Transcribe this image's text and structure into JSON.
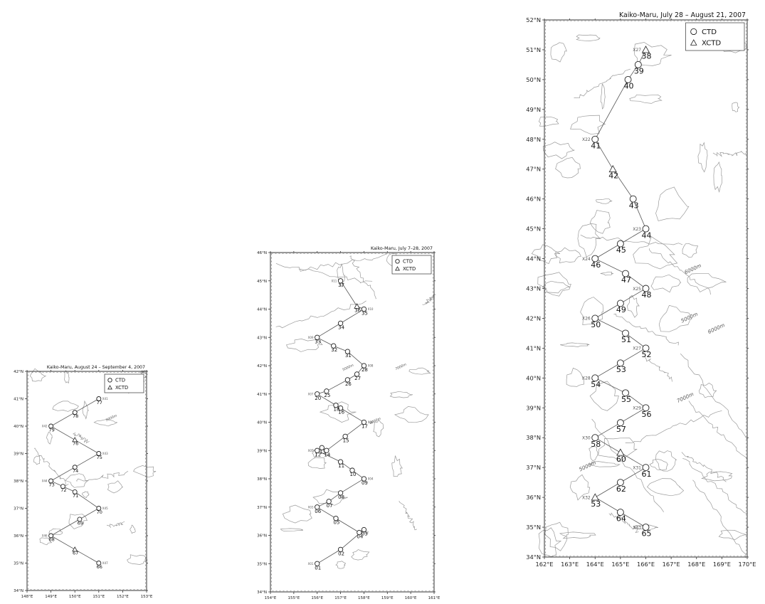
{
  "maps": [
    {
      "title": "Kaiko-Maru, August 24 – September 4, 2007",
      "lon_range": [
        148,
        153
      ],
      "lat_range": [
        34,
        42
      ],
      "lon_ticks": [
        "148°E",
        "149°E",
        "150°E",
        "151°E",
        "152°E",
        "153°E"
      ],
      "lat_ticks": [
        "34°N",
        "35°N",
        "36°N",
        "37°N",
        "38°N",
        "39°N",
        "40°N",
        "41°N",
        "42°N"
      ],
      "legend": {
        "ctd": "CTD",
        "xctd": "XCTD"
      },
      "stations": [
        {
          "label": "66",
          "lon": 151.0,
          "lat": 35.0,
          "type": "ctd",
          "code": "X47"
        },
        {
          "label": "67",
          "lon": 150.0,
          "lat": 35.5,
          "type": "xctd"
        },
        {
          "label": "68",
          "lon": 149.0,
          "lat": 36.0,
          "type": "ctd",
          "code": "X46"
        },
        {
          "label": "69",
          "lon": 150.2,
          "lat": 36.6,
          "type": "ctd"
        },
        {
          "label": "70",
          "lon": 151.0,
          "lat": 37.0,
          "type": "ctd",
          "code": "X45"
        },
        {
          "label": "71",
          "lon": 150.0,
          "lat": 37.6,
          "type": "ctd"
        },
        {
          "label": "72",
          "lon": 149.5,
          "lat": 37.8,
          "type": "ctd"
        },
        {
          "label": "73",
          "lon": 149.0,
          "lat": 38.0,
          "type": "ctd",
          "code": "X44"
        },
        {
          "label": "74",
          "lon": 150.0,
          "lat": 38.5,
          "type": "ctd"
        },
        {
          "label": "75",
          "lon": 151.0,
          "lat": 39.0,
          "type": "ctd",
          "code": "X43"
        },
        {
          "label": "76",
          "lon": 150.0,
          "lat": 39.5,
          "type": "xctd"
        },
        {
          "label": "79",
          "lon": 149.0,
          "lat": 40.0,
          "type": "ctd",
          "code": "X42"
        },
        {
          "label": "78",
          "lon": 150.0,
          "lat": 40.5,
          "type": "ctd"
        },
        {
          "label": "77",
          "lon": 151.0,
          "lat": 41.0,
          "type": "ctd",
          "code": "X41"
        }
      ],
      "depth_labels": [
        "5000m"
      ]
    },
    {
      "title": "Kaiko-Maru, July 7–28, 2007",
      "lon_range": [
        154,
        161
      ],
      "lat_range": [
        34,
        46
      ],
      "lon_ticks": [
        "154°E",
        "155°E",
        "156°E",
        "157°E",
        "158°E",
        "159°E",
        "160°E",
        "161°E"
      ],
      "lat_ticks": [
        "34°N",
        "35°N",
        "36°N",
        "37°N",
        "38°N",
        "39°N",
        "40°N",
        "41°N",
        "42°N",
        "43°N",
        "44°N",
        "45°N",
        "46°N"
      ],
      "legend": {
        "ctd": "CTD",
        "xctd": "XCTD"
      },
      "stations": [
        {
          "label": "01",
          "lon": 156.0,
          "lat": 35.0,
          "type": "ctd",
          "code": "X01"
        },
        {
          "label": "02",
          "lon": 157.0,
          "lat": 35.5,
          "type": "ctd"
        },
        {
          "label": "03",
          "lon": 158.0,
          "lat": 36.2,
          "type": "ctd"
        },
        {
          "label": "04",
          "lon": 157.8,
          "lat": 36.1,
          "type": "ctd",
          "code": "X02"
        },
        {
          "label": "05",
          "lon": 156.8,
          "lat": 36.6,
          "type": "ctd"
        },
        {
          "label": "06",
          "lon": 156.0,
          "lat": 37.0,
          "type": "ctd",
          "code": "X03"
        },
        {
          "label": "07",
          "lon": 156.5,
          "lat": 37.2,
          "type": "ctd"
        },
        {
          "label": "08",
          "lon": 157.0,
          "lat": 37.5,
          "type": "ctd"
        },
        {
          "label": "09",
          "lon": 158.0,
          "lat": 38.0,
          "type": "ctd",
          "code": "X04"
        },
        {
          "label": "10",
          "lon": 157.5,
          "lat": 38.3,
          "type": "ctd"
        },
        {
          "label": "11",
          "lon": 157.0,
          "lat": 38.6,
          "type": "ctd"
        },
        {
          "label": "12",
          "lon": 156.0,
          "lat": 39.0,
          "type": "ctd",
          "code": "X05"
        },
        {
          "label": "13",
          "lon": 156.2,
          "lat": 39.1,
          "type": "ctd"
        },
        {
          "label": "14",
          "lon": 156.4,
          "lat": 39.0,
          "type": "ctd"
        },
        {
          "label": "15",
          "lon": 157.2,
          "lat": 39.5,
          "type": "ctd"
        },
        {
          "label": "17",
          "lon": 158.0,
          "lat": 40.0,
          "type": "ctd",
          "code": "X06"
        },
        {
          "label": "16",
          "lon": 157.0,
          "lat": 40.5,
          "type": "ctd"
        },
        {
          "label": "18",
          "lon": 156.8,
          "lat": 40.6,
          "type": "ctd"
        },
        {
          "label": "20",
          "lon": 156.0,
          "lat": 41.0,
          "type": "ctd",
          "code": "X07"
        },
        {
          "label": "25",
          "lon": 156.4,
          "lat": 41.1,
          "type": "ctd"
        },
        {
          "label": "26",
          "lon": 157.3,
          "lat": 41.5,
          "type": "ctd"
        },
        {
          "label": "27",
          "lon": 157.7,
          "lat": 41.7,
          "type": "ctd"
        },
        {
          "label": "28",
          "lon": 158.0,
          "lat": 42.0,
          "type": "ctd",
          "code": "X08"
        },
        {
          "label": "31",
          "lon": 157.3,
          "lat": 42.5,
          "type": "ctd"
        },
        {
          "label": "32",
          "lon": 156.7,
          "lat": 42.7,
          "type": "ctd"
        },
        {
          "label": "33",
          "lon": 156.0,
          "lat": 43.0,
          "type": "ctd",
          "code": "X09"
        },
        {
          "label": "34",
          "lon": 157.0,
          "lat": 43.5,
          "type": "ctd"
        },
        {
          "label": "35",
          "lon": 158.0,
          "lat": 44.0,
          "type": "ctd",
          "code": "X10"
        },
        {
          "label": "36",
          "lon": 157.7,
          "lat": 44.1,
          "type": "xctd"
        },
        {
          "label": "37",
          "lon": 157.0,
          "lat": 45.0,
          "type": "ctd",
          "code": "X11"
        }
      ],
      "depth_labels": [
        "5000m",
        "6000m",
        "7000m"
      ]
    },
    {
      "title": "Kaiko-Maru, July 28 – August 21, 2007",
      "lon_range": [
        162,
        170
      ],
      "lat_range": [
        34,
        52
      ],
      "lon_ticks": [
        "162°E",
        "163°E",
        "164°E",
        "165°E",
        "166°E",
        "167°E",
        "168°E",
        "169°E",
        "170°E"
      ],
      "lat_ticks": [
        "34°N",
        "35°N",
        "36°N",
        "37°N",
        "38°N",
        "39°N",
        "40°N",
        "41°N",
        "42°N",
        "43°N",
        "44°N",
        "45°N",
        "46°N",
        "47°N",
        "48°N",
        "49°N",
        "50°N",
        "51°N",
        "52°N"
      ],
      "legend": {
        "ctd": "CTD",
        "xctd": "XCTD"
      },
      "stations": [
        {
          "label": "38",
          "lon": 166.0,
          "lat": 51.0,
          "type": "xctd",
          "code": "X27"
        },
        {
          "label": "39",
          "lon": 165.7,
          "lat": 50.5,
          "type": "ctd"
        },
        {
          "label": "40",
          "lon": 165.3,
          "lat": 50.0,
          "type": "ctd"
        },
        {
          "label": "41",
          "lon": 164.0,
          "lat": 48.0,
          "type": "ctd",
          "code": "X22"
        },
        {
          "label": "42",
          "lon": 164.7,
          "lat": 47.0,
          "type": "xctd"
        },
        {
          "label": "43",
          "lon": 165.5,
          "lat": 46.0,
          "type": "ctd"
        },
        {
          "label": "44",
          "lon": 166.0,
          "lat": 45.0,
          "type": "ctd",
          "code": "X23"
        },
        {
          "label": "45",
          "lon": 165.0,
          "lat": 44.5,
          "type": "ctd"
        },
        {
          "label": "46",
          "lon": 164.0,
          "lat": 44.0,
          "type": "ctd",
          "code": "X24"
        },
        {
          "label": "47",
          "lon": 165.2,
          "lat": 43.5,
          "type": "ctd"
        },
        {
          "label": "48",
          "lon": 166.0,
          "lat": 43.0,
          "type": "ctd",
          "code": "X25"
        },
        {
          "label": "49",
          "lon": 165.0,
          "lat": 42.5,
          "type": "ctd"
        },
        {
          "label": "50",
          "lon": 164.0,
          "lat": 42.0,
          "type": "ctd",
          "code": "X26"
        },
        {
          "label": "51",
          "lon": 165.2,
          "lat": 41.5,
          "type": "ctd"
        },
        {
          "label": "52",
          "lon": 166.0,
          "lat": 41.0,
          "type": "ctd",
          "code": "X27"
        },
        {
          "label": "53",
          "lon": 165.0,
          "lat": 40.5,
          "type": "ctd"
        },
        {
          "label": "54",
          "lon": 164.0,
          "lat": 40.0,
          "type": "ctd",
          "code": "X28"
        },
        {
          "label": "55",
          "lon": 165.2,
          "lat": 39.5,
          "type": "ctd"
        },
        {
          "label": "56",
          "lon": 166.0,
          "lat": 39.0,
          "type": "ctd",
          "code": "X29"
        },
        {
          "label": "57",
          "lon": 165.0,
          "lat": 38.5,
          "type": "ctd"
        },
        {
          "label": "58",
          "lon": 164.0,
          "lat": 38.0,
          "type": "ctd",
          "code": "X30"
        },
        {
          "label": "60",
          "lon": 165.0,
          "lat": 37.5,
          "type": "xctd"
        },
        {
          "label": "61",
          "lon": 166.0,
          "lat": 37.0,
          "type": "ctd",
          "code": "X31"
        },
        {
          "label": "62",
          "lon": 165.0,
          "lat": 36.5,
          "type": "ctd"
        },
        {
          "label": "53",
          "lon": 164.0,
          "lat": 36.0,
          "type": "xctd",
          "code": "X32"
        },
        {
          "label": "64",
          "lon": 165.0,
          "lat": 35.5,
          "type": "ctd"
        },
        {
          "label": "65",
          "lon": 166.0,
          "lat": 35.0,
          "type": "ctd",
          "code": "X33"
        }
      ],
      "depth_labels": [
        "5000m",
        "6000m",
        "7000m",
        "5000m",
        "6000m"
      ]
    }
  ]
}
